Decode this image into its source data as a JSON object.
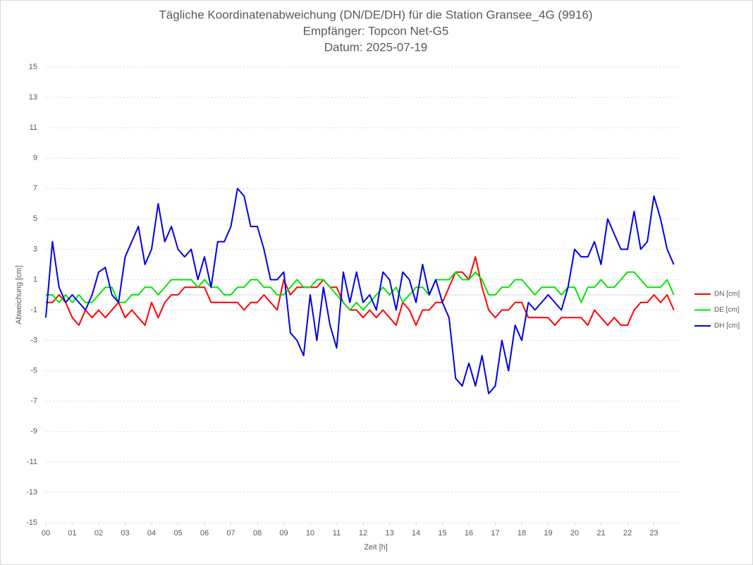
{
  "chart_data": {
    "type": "line",
    "title": [
      "Tägliche Koordinatenabweichung (DN/DE/DH) für die Station Gransee_4G (9916)",
      "Empfänger: Topcon Net-G5",
      "Datum: 2025-07-19"
    ],
    "xlabel": "Zeit [h]",
    "ylabel": "Abweichung [cm]",
    "xlim": [
      0,
      24
    ],
    "ylim": [
      -15,
      15
    ],
    "xticks": [
      {
        "value": 0,
        "label": "00"
      },
      {
        "value": 1,
        "label": "01"
      },
      {
        "value": 2,
        "label": "02"
      },
      {
        "value": 3,
        "label": "03"
      },
      {
        "value": 4,
        "label": "04"
      },
      {
        "value": 5,
        "label": "05"
      },
      {
        "value": 6,
        "label": "06"
      },
      {
        "value": 7,
        "label": "07"
      },
      {
        "value": 8,
        "label": "08"
      },
      {
        "value": 9,
        "label": "09"
      },
      10,
      11,
      12,
      13,
      14,
      15,
      16,
      17,
      18,
      19,
      20,
      21,
      22,
      23
    ],
    "yticks": [
      15,
      13,
      11,
      9,
      7,
      5,
      3,
      1,
      -1,
      -3,
      -5,
      -7,
      -9,
      -11,
      -13,
      -15
    ],
    "grid": true,
    "legend": "right",
    "x": [
      0,
      0.25,
      0.5,
      0.75,
      1,
      1.25,
      1.5,
      1.75,
      2,
      2.25,
      2.5,
      2.75,
      3,
      3.25,
      3.5,
      3.75,
      4,
      4.25,
      4.5,
      4.75,
      5,
      5.25,
      5.5,
      5.75,
      6,
      6.25,
      6.5,
      6.75,
      7,
      7.25,
      7.5,
      7.75,
      8,
      8.25,
      8.5,
      8.75,
      9,
      9.25,
      9.5,
      9.75,
      10,
      10.25,
      10.5,
      10.75,
      11,
      11.25,
      11.5,
      11.75,
      12,
      12.25,
      12.5,
      12.75,
      13,
      13.25,
      13.5,
      13.75,
      14,
      14.25,
      14.5,
      14.75,
      15,
      15.25,
      15.5,
      15.75,
      16,
      16.25,
      16.5,
      16.75,
      17,
      17.25,
      17.5,
      17.75,
      18,
      18.25,
      18.5,
      18.75,
      19,
      19.25,
      19.5,
      19.75,
      20,
      20.25,
      20.5,
      20.75,
      21,
      21.25,
      21.5,
      21.75,
      22,
      22.25,
      22.5,
      22.75,
      23,
      23.25,
      23.5,
      23.75
    ],
    "series": [
      {
        "name": "DN [cm]",
        "color": "#ff0000",
        "values": [
          -0.5,
          -0.5,
          0,
          -0.5,
          -1.5,
          -2,
          -1,
          -1.5,
          -1,
          -1.5,
          -1,
          -0.5,
          -1.5,
          -1,
          -1.5,
          -2,
          -0.5,
          -1.5,
          -0.5,
          0,
          0,
          0.5,
          0.5,
          0.5,
          0.5,
          -0.5,
          -0.5,
          -0.5,
          -0.5,
          -0.5,
          -1,
          -0.5,
          -0.5,
          0,
          -0.5,
          -1,
          1,
          0,
          0.5,
          0.5,
          0.5,
          0.5,
          1,
          0.5,
          0.5,
          -0.5,
          -1,
          -1,
          -1.5,
          -1,
          -1.5,
          -1,
          -1.5,
          -2,
          -0.5,
          -1,
          -2,
          -1,
          -1,
          -0.5,
          -0.5,
          0.5,
          1.5,
          1.5,
          1,
          2.5,
          0.5,
          -1,
          -1.5,
          -1,
          -1,
          -0.5,
          -0.5,
          -1.5,
          -1.5,
          -1.5,
          -1.5,
          -2,
          -1.5,
          -1.5,
          -1.5,
          -1.5,
          -2,
          -1,
          -1.5,
          -2,
          -1.5,
          -2,
          -2,
          -1,
          -0.5,
          -0.5,
          0,
          -0.5,
          0,
          -1
        ]
      },
      {
        "name": "DE [cm]",
        "color": "#00e600",
        "values": [
          0,
          0,
          -0.5,
          0,
          -0.5,
          0,
          -0.5,
          -0.5,
          0,
          0.5,
          0.5,
          -0.5,
          -0.5,
          0,
          0,
          0.5,
          0.5,
          0,
          0.5,
          1,
          1,
          1,
          1,
          0.5,
          1,
          0.5,
          0.5,
          0,
          0,
          0.5,
          0.5,
          1,
          1,
          0.5,
          0.5,
          0,
          0,
          0.5,
          1,
          0.5,
          0.5,
          1,
          1,
          0.5,
          0,
          -0.5,
          -1,
          -0.5,
          -1,
          -0.5,
          0,
          0.5,
          0,
          0.5,
          -0.5,
          0,
          0.5,
          0.5,
          0,
          1,
          1,
          1,
          1.5,
          1,
          1,
          1.5,
          1,
          0,
          0,
          0.5,
          0.5,
          1,
          1,
          0.5,
          0,
          0.5,
          0.5,
          0.5,
          0,
          0.5,
          0.5,
          -0.5,
          0.5,
          0.5,
          1,
          0.5,
          0.5,
          1,
          1.5,
          1.5,
          1,
          0.5,
          0.5,
          0.5,
          1,
          0
        ]
      },
      {
        "name": "DH [cm]",
        "color": "#0000e6",
        "values": [
          -1.5,
          3.5,
          0.5,
          -0.5,
          0,
          -0.5,
          -1,
          0,
          1.5,
          1.8,
          0,
          -0.5,
          2.5,
          3.5,
          4.5,
          2,
          3,
          6,
          3.5,
          4.5,
          3,
          2.5,
          3,
          1,
          2.5,
          0.5,
          3.5,
          3.5,
          4.5,
          7,
          6.5,
          4.5,
          4.5,
          3,
          1,
          1,
          1.5,
          -2.5,
          -3,
          -4,
          0,
          -3,
          0.5,
          -2,
          -3.5,
          1.5,
          -0.5,
          1.5,
          -0.5,
          0,
          -1,
          1.5,
          1,
          -1,
          1.5,
          1,
          -0.5,
          2,
          0,
          1,
          -0.5,
          -1.5,
          -5.5,
          -6,
          -4.5,
          -6,
          -4,
          -6.5,
          -6,
          -3,
          -5,
          -2,
          -3,
          -0.5,
          -1,
          -0.5,
          0,
          -0.5,
          -1,
          0.5,
          3,
          2.5,
          2.5,
          3.5,
          2,
          5,
          4,
          3,
          3,
          5.5,
          3,
          3.5,
          6.5,
          5,
          3,
          2
        ]
      }
    ]
  }
}
